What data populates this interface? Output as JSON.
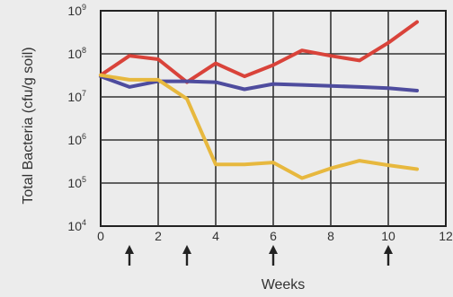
{
  "chart_data": {
    "type": "line",
    "xlabel": "Weeks",
    "ylabel": "Total Bacteria (cfu/g soil)",
    "xlim": [
      0,
      12
    ],
    "ylim_log10": [
      4,
      9
    ],
    "y_scale": "log",
    "grid": true,
    "x_ticks": [
      "0",
      "2",
      "4",
      "6",
      "8",
      "10",
      "12"
    ],
    "y_ticks": [
      {
        "base": "10",
        "exp": "4"
      },
      {
        "base": "10",
        "exp": "5"
      },
      {
        "base": "10",
        "exp": "6"
      },
      {
        "base": "10",
        "exp": "7"
      },
      {
        "base": "10",
        "exp": "8"
      },
      {
        "base": "10",
        "exp": "9"
      }
    ],
    "arrows_at_weeks": [
      1,
      3,
      6,
      10
    ],
    "arrow_glyph": "↑",
    "series": [
      {
        "color": "#d9433a",
        "x": [
          0,
          1,
          2,
          3,
          4,
          5,
          6,
          7,
          8,
          9,
          10,
          11
        ],
        "y": [
          32000000.0,
          90000000.0,
          75000000.0,
          22000000.0,
          60000000.0,
          30000000.0,
          55000000.0,
          120000000.0,
          90000000.0,
          70000000.0,
          180000000.0,
          550000000.0
        ]
      },
      {
        "color": "#4e4c9e",
        "x": [
          0,
          1,
          2,
          3,
          4,
          5,
          6,
          7,
          8,
          9,
          10,
          11
        ],
        "y": [
          30000000.0,
          17000000.0,
          23000000.0,
          23000000.0,
          22000000.0,
          15000000.0,
          20000000.0,
          19000000.0,
          18000000.0,
          17000000.0,
          16000000.0,
          14000000.0
        ]
      },
      {
        "color": "#e7b83e",
        "x": [
          0,
          1,
          2,
          3,
          4,
          5,
          6,
          7,
          8,
          9,
          10,
          11
        ],
        "y": [
          32000000.0,
          25000000.0,
          25000000.0,
          9000000.0,
          270000.0,
          270000.0,
          300000.0,
          130000.0,
          220000.0,
          330000.0,
          260000.0,
          210000.0
        ]
      }
    ]
  }
}
